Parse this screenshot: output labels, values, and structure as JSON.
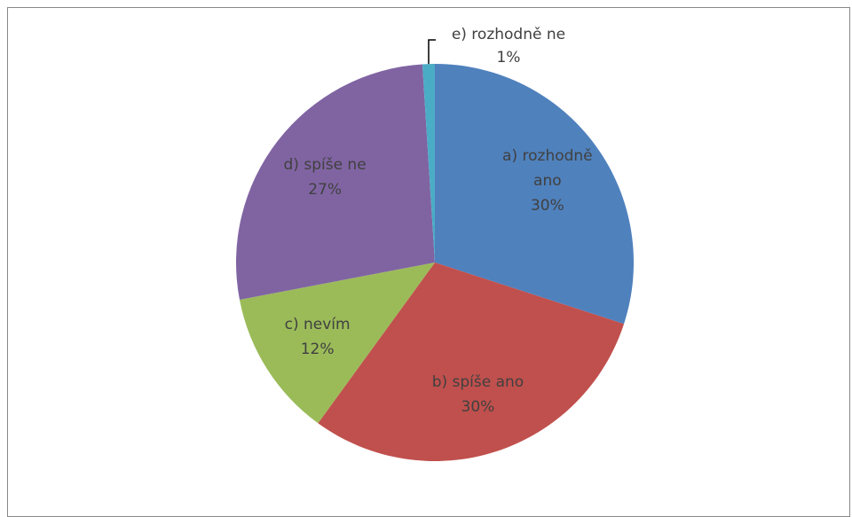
{
  "chart_data": {
    "type": "pie",
    "categories": [
      "a) rozhodně ano",
      "b) spíše ano",
      "c) nevím",
      "d) spíše ne",
      "e) rozhodně ne"
    ],
    "values": [
      30,
      30,
      12,
      27,
      1
    ],
    "value_labels": [
      "30%",
      "30%",
      "12%",
      "27%",
      "1%"
    ],
    "colors": [
      "#4f81bd",
      "#c0504d",
      "#9bbb59",
      "#8064a2",
      "#4bacc6"
    ]
  }
}
